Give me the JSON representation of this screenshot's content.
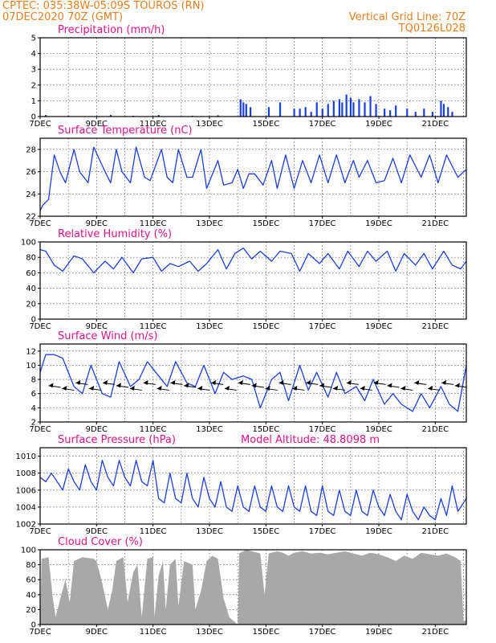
{
  "header": {
    "left_line1": "CPTEC:   035:38W-05:09S  TOUROS (RN)",
    "left_line2": "07DEC2020 70Z (GMT)",
    "right_line1": "Vertical Grid Line: 70Z",
    "right_line2": "TQ0126L028"
  },
  "colors": {
    "series": "#1a3fe0",
    "cloud": "#a8a8a8",
    "header": "#e87e1e",
    "title": "#e0138c"
  },
  "x_ticks": [
    "7DEC",
    "9DEC",
    "11DEC",
    "13DEC",
    "15DEC",
    "17DEC",
    "19DEC",
    "21DEC"
  ],
  "x_ticks_day": [
    7,
    9,
    11,
    13,
    15,
    17,
    19,
    21
  ],
  "x_range_days": [
    7.0,
    22.1
  ],
  "panels": {
    "precip": {
      "title": "Precipitation (mm/h)",
      "yticks": [
        "0",
        "1",
        "2",
        "3",
        "4",
        "5"
      ]
    },
    "temp": {
      "title": "Surface Temperature (nC)",
      "yticks": [
        "22",
        "24",
        "26",
        "28"
      ]
    },
    "rh": {
      "title": "Relative Humidity (%)",
      "yticks": [
        "0",
        "20",
        "40",
        "60",
        "80",
        "100"
      ]
    },
    "wind": {
      "title": "Surface Wind (m/s)",
      "yticks": [
        "2",
        "4",
        "6",
        "8",
        "10",
        "12"
      ]
    },
    "pressure": {
      "title": "Surface Pressure (hPa)",
      "subtitle": "Model Altitude: 48.8098 m",
      "yticks": [
        "1002",
        "1004",
        "1006",
        "1008",
        "1010"
      ]
    },
    "cloud": {
      "title": "Cloud Cover (%)",
      "yticks": [
        "0",
        "20",
        "40",
        "60",
        "80",
        "100"
      ]
    }
  },
  "chart_data": [
    {
      "type": "bar",
      "title": "Precipitation (mm/h)",
      "ylim": [
        0,
        5
      ],
      "x_day": [
        7.2,
        8.0,
        9.5,
        10.3,
        11.2,
        12.4,
        13.3,
        14.1,
        14.2,
        14.3,
        14.45,
        15.1,
        15.5,
        16.0,
        16.2,
        16.4,
        16.6,
        16.8,
        17.0,
        17.2,
        17.4,
        17.6,
        17.7,
        17.85,
        18.0,
        18.1,
        18.3,
        18.5,
        18.7,
        18.9,
        19.2,
        19.4,
        19.6,
        20.0,
        20.3,
        20.6,
        20.9,
        21.2,
        21.3,
        21.45,
        21.6
      ],
      "values": [
        0.1,
        0.05,
        0.1,
        0.05,
        0.1,
        0.05,
        0.08,
        1.1,
        0.9,
        0.8,
        0.6,
        0.6,
        0.9,
        0.5,
        0.5,
        0.6,
        0.3,
        0.9,
        0.5,
        0.8,
        1.0,
        1.1,
        0.9,
        1.4,
        1.2,
        0.9,
        1.1,
        0.9,
        1.3,
        0.8,
        0.5,
        0.4,
        0.7,
        0.5,
        0.3,
        0.5,
        0.3,
        1.0,
        0.8,
        0.6,
        0.3
      ]
    },
    {
      "type": "line",
      "title": "Surface Temperature (nC)",
      "ylim": [
        22,
        29
      ],
      "x_day": [
        7.0,
        7.1,
        7.3,
        7.5,
        7.7,
        7.9,
        8.2,
        8.4,
        8.7,
        8.9,
        9.3,
        9.5,
        9.7,
        9.9,
        10.2,
        10.4,
        10.7,
        10.9,
        11.3,
        11.5,
        11.7,
        11.9,
        12.2,
        12.4,
        12.7,
        12.9,
        13.3,
        13.5,
        13.8,
        14.0,
        14.2,
        14.4,
        14.6,
        14.9,
        15.2,
        15.4,
        15.7,
        16.0,
        16.3,
        16.6,
        16.9,
        17.2,
        17.5,
        17.8,
        18.1,
        18.3,
        18.6,
        18.9,
        19.2,
        19.5,
        19.8,
        20.1,
        20.5,
        20.8,
        21.1,
        21.4,
        21.8,
        22.1
      ],
      "values": [
        22.5,
        23.0,
        23.5,
        27.5,
        26.0,
        25.0,
        28.0,
        26.0,
        25.0,
        28.2,
        26.0,
        25.0,
        28.0,
        26.0,
        25.0,
        28.2,
        25.5,
        25.2,
        28.0,
        25.5,
        25.0,
        28.0,
        25.5,
        25.5,
        28.0,
        24.5,
        27.0,
        24.8,
        25.0,
        26.2,
        24.5,
        25.8,
        25.8,
        24.8,
        27.0,
        24.5,
        27.5,
        24.5,
        27.0,
        25.0,
        27.5,
        25.0,
        27.5,
        25.0,
        27.0,
        25.5,
        27.0,
        25.0,
        25.2,
        27.2,
        25.0,
        27.5,
        25.5,
        27.5,
        25.0,
        27.5,
        25.5,
        26.2
      ]
    },
    {
      "type": "line",
      "title": "Relative Humidity (%)",
      "ylim": [
        0,
        100
      ],
      "x_day": [
        7.0,
        7.2,
        7.5,
        7.8,
        8.2,
        8.5,
        8.9,
        9.3,
        9.6,
        9.9,
        10.3,
        10.6,
        11.0,
        11.3,
        11.6,
        11.9,
        12.3,
        12.6,
        12.9,
        13.3,
        13.6,
        13.9,
        14.2,
        14.5,
        14.8,
        15.2,
        15.5,
        15.9,
        16.2,
        16.5,
        16.9,
        17.2,
        17.6,
        17.9,
        18.3,
        18.6,
        18.9,
        19.3,
        19.6,
        19.9,
        20.3,
        20.6,
        20.9,
        21.3,
        21.6,
        21.9,
        22.1
      ],
      "values": [
        90,
        88,
        70,
        62,
        82,
        78,
        60,
        75,
        65,
        80,
        60,
        78,
        80,
        62,
        72,
        68,
        75,
        62,
        72,
        90,
        65,
        85,
        92,
        78,
        88,
        75,
        88,
        85,
        62,
        85,
        72,
        85,
        65,
        88,
        68,
        88,
        75,
        88,
        62,
        85,
        70,
        85,
        65,
        88,
        70,
        65,
        75
      ]
    },
    {
      "type": "line",
      "title": "Surface Wind (m/s)",
      "ylim": [
        2,
        13
      ],
      "x_day": [
        7.0,
        7.2,
        7.5,
        7.8,
        8.2,
        8.5,
        8.8,
        9.2,
        9.5,
        9.8,
        10.2,
        10.5,
        10.8,
        11.2,
        11.5,
        11.8,
        12.2,
        12.5,
        12.8,
        13.2,
        13.5,
        13.8,
        14.2,
        14.5,
        14.8,
        15.2,
        15.5,
        15.8,
        16.2,
        16.5,
        16.8,
        17.2,
        17.5,
        17.8,
        18.2,
        18.5,
        18.8,
        19.2,
        19.5,
        19.8,
        20.2,
        20.5,
        20.8,
        21.2,
        21.5,
        21.8,
        22.1
      ],
      "values": [
        9,
        11.5,
        11.5,
        11,
        7,
        6,
        10,
        6,
        5.5,
        10.5,
        7,
        8,
        10.5,
        8.5,
        7,
        10.5,
        7.5,
        7,
        10,
        6,
        9,
        8,
        8.5,
        8,
        4,
        8,
        9,
        5,
        10,
        6.5,
        9,
        5.5,
        9,
        6,
        7,
        5,
        8,
        4.5,
        6,
        4.5,
        3.5,
        6,
        4,
        7,
        4.5,
        3.5,
        10
      ]
    },
    {
      "type": "line",
      "title": "Surface Pressure (hPa)",
      "ylim": [
        1002,
        1011
      ],
      "x_day": [
        7.0,
        7.2,
        7.4,
        7.6,
        7.8,
        8.0,
        8.2,
        8.4,
        8.6,
        8.8,
        9.0,
        9.2,
        9.4,
        9.6,
        9.8,
        10.0,
        10.2,
        10.4,
        10.6,
        10.8,
        11.0,
        11.2,
        11.4,
        11.6,
        11.8,
        12.0,
        12.2,
        12.4,
        12.6,
        12.8,
        13.0,
        13.2,
        13.4,
        13.6,
        13.8,
        14.0,
        14.2,
        14.4,
        14.6,
        14.8,
        15.0,
        15.2,
        15.4,
        15.6,
        15.8,
        16.0,
        16.2,
        16.4,
        16.6,
        16.8,
        17.0,
        17.2,
        17.4,
        17.6,
        17.8,
        18.0,
        18.2,
        18.4,
        18.6,
        18.8,
        19.0,
        19.2,
        19.4,
        19.6,
        19.8,
        20.0,
        20.2,
        20.4,
        20.6,
        20.8,
        21.0,
        21.2,
        21.4,
        21.6,
        21.8,
        22.1
      ],
      "values": [
        1007.5,
        1007,
        1008,
        1007,
        1006,
        1008.5,
        1007,
        1006,
        1009,
        1007,
        1006,
        1009.5,
        1007.5,
        1006.5,
        1009.5,
        1007.5,
        1006.5,
        1009.5,
        1007,
        1006.5,
        1009.5,
        1005,
        1004.5,
        1008,
        1005,
        1004.5,
        1008,
        1005,
        1004,
        1007.5,
        1005,
        1004,
        1007,
        1004,
        1003.5,
        1006.5,
        1004,
        1003.5,
        1006.5,
        1004,
        1003.5,
        1006.5,
        1004,
        1003.5,
        1006.5,
        1004,
        1003.5,
        1006.5,
        1003.5,
        1003,
        1006.5,
        1003.5,
        1003,
        1006,
        1003.5,
        1003,
        1006,
        1003.5,
        1003,
        1006,
        1004,
        1003,
        1005.5,
        1003.5,
        1002.5,
        1005.5,
        1003.5,
        1002.5,
        1004,
        1003,
        1002.5,
        1005,
        1003,
        1006.5,
        1003.5,
        1005
      ]
    },
    {
      "type": "area",
      "title": "Cloud Cover (%)",
      "ylim": [
        0,
        100
      ],
      "x_day": [
        7.0,
        7.05,
        7.3,
        7.45,
        7.55,
        7.75,
        7.9,
        8.05,
        8.2,
        8.5,
        8.9,
        9.0,
        9.2,
        9.4,
        9.55,
        9.7,
        9.95,
        10.1,
        10.3,
        10.45,
        10.6,
        10.8,
        11.0,
        11.05,
        11.2,
        11.35,
        11.45,
        11.6,
        11.8,
        11.9,
        12.1,
        12.4,
        12.5,
        12.7,
        12.9,
        13.1,
        13.3,
        13.5,
        13.7,
        14.0,
        14.05,
        14.2,
        14.3,
        14.5,
        14.8,
        14.95,
        15.1,
        15.4,
        15.6,
        15.8,
        16.0,
        16.3,
        16.6,
        16.9,
        17.2,
        17.5,
        17.8,
        18.1,
        18.4,
        18.7,
        19.0,
        19.3,
        19.6,
        19.9,
        20.2,
        20.5,
        20.8,
        21.1,
        21.4,
        21.7,
        21.9,
        22.0,
        22.1
      ],
      "values": [
        0,
        88,
        90,
        35,
        10,
        40,
        60,
        30,
        85,
        90,
        88,
        85,
        55,
        20,
        45,
        85,
        90,
        30,
        70,
        80,
        10,
        88,
        90,
        10,
        65,
        85,
        20,
        80,
        88,
        25,
        85,
        80,
        20,
        45,
        85,
        92,
        88,
        35,
        10,
        0,
        95,
        98,
        100,
        98,
        95,
        40,
        95,
        98,
        96,
        92,
        96,
        98,
        95,
        96,
        94,
        96,
        98,
        95,
        92,
        96,
        94,
        90,
        85,
        92,
        88,
        96,
        94,
        92,
        95,
        90,
        85,
        5,
        5
      ]
    }
  ]
}
